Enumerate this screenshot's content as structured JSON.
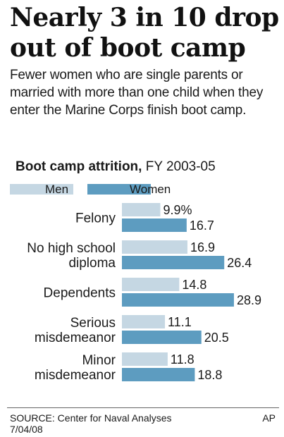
{
  "headline": "Nearly 3 in 10 drop out of boot camp",
  "dek": "Fewer women who are single parents or married with more than one child when they enter the Marine Corps finish boot camp.",
  "subtitle_bold": "Boot camp attrition,",
  "subtitle_regular": " FY 2003-05",
  "colors": {
    "men": "#c5d7e3",
    "women": "#5d9cc0",
    "text": "#1a1a1a"
  },
  "chart_data": {
    "type": "bar",
    "orientation": "horizontal",
    "title": "Boot camp attrition, FY 2003-05",
    "categories": [
      [
        "Felony"
      ],
      [
        "No high school",
        "diploma"
      ],
      [
        "Dependents"
      ],
      [
        "Serious",
        "misdemeanor"
      ],
      [
        "Minor",
        "misdemeanor"
      ]
    ],
    "series": [
      {
        "name": "Men",
        "values": [
          9.9,
          16.9,
          14.8,
          11.1,
          11.8
        ],
        "labels": [
          "9.9%",
          "16.9",
          "14.8",
          "11.1",
          "11.8"
        ]
      },
      {
        "name": "Women",
        "values": [
          16.7,
          26.4,
          28.9,
          20.5,
          18.8
        ],
        "labels": [
          "16.7",
          "26.4",
          "28.9",
          "20.5",
          "18.8"
        ]
      }
    ],
    "unit": "%",
    "legend": "top-left",
    "grid": false
  },
  "footer": {
    "source": "SOURCE: Center for Naval Analyses",
    "date": "7/04/08",
    "credit": "AP"
  }
}
